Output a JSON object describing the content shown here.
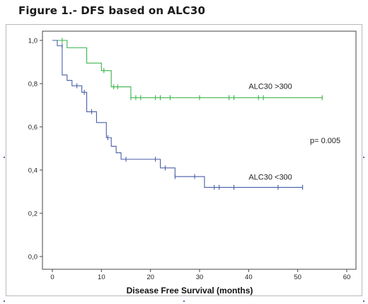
{
  "figure_title": "Figure 1.- DFS based on ALC30",
  "chart_data": {
    "type": "line",
    "step": true,
    "title": "",
    "xlabel": "Disease Free Survival (months)",
    "ylabel": "",
    "xlim": [
      0,
      60
    ],
    "ylim": [
      0,
      1
    ],
    "x_ticks": [
      0,
      10,
      20,
      30,
      40,
      50,
      60
    ],
    "x_tick_labels": [
      "0",
      "10",
      "20",
      "30",
      "40",
      "50",
      "60"
    ],
    "y_ticks": [
      0,
      0.2,
      0.4,
      0.6,
      0.8,
      1.0
    ],
    "y_tick_labels": [
      "0,0",
      "0,2",
      "0,4",
      "0,6",
      "0,8",
      "1,0"
    ],
    "grid": false,
    "series": [
      {
        "name": "ALC30 >300",
        "color": "#3cb44b",
        "steps": [
          [
            0,
            1.0
          ],
          [
            3,
            0.966
          ],
          [
            7,
            0.895
          ],
          [
            10,
            0.86
          ],
          [
            12,
            0.785
          ],
          [
            16,
            0.735
          ],
          [
            55,
            0.735
          ]
        ],
        "censored": [
          [
            2,
            1.0
          ],
          [
            10.5,
            0.86
          ],
          [
            12.5,
            0.785
          ],
          [
            13.3,
            0.785
          ],
          [
            16,
            0.735
          ],
          [
            17,
            0.735
          ],
          [
            18,
            0.735
          ],
          [
            21,
            0.735
          ],
          [
            22,
            0.735
          ],
          [
            24,
            0.735
          ],
          [
            30,
            0.735
          ],
          [
            36,
            0.735
          ],
          [
            37,
            0.735
          ],
          [
            42,
            0.735
          ],
          [
            43,
            0.735
          ],
          [
            55,
            0.735
          ]
        ]
      },
      {
        "name": "ALC30 <300",
        "color": "#4a5fa8",
        "steps": [
          [
            0,
            1.0
          ],
          [
            1,
            0.975
          ],
          [
            2,
            0.84
          ],
          [
            3,
            0.815
          ],
          [
            4,
            0.79
          ],
          [
            6,
            0.76
          ],
          [
            7,
            0.67
          ],
          [
            9,
            0.62
          ],
          [
            11,
            0.55
          ],
          [
            12,
            0.51
          ],
          [
            13,
            0.48
          ],
          [
            14,
            0.45
          ],
          [
            22,
            0.41
          ],
          [
            25,
            0.37
          ],
          [
            31,
            0.32
          ],
          [
            51,
            0.32
          ]
        ],
        "censored": [
          [
            2,
            0.975
          ],
          [
            5,
            0.79
          ],
          [
            6.5,
            0.76
          ],
          [
            8,
            0.67
          ],
          [
            11.3,
            0.55
          ],
          [
            15,
            0.45
          ],
          [
            21,
            0.45
          ],
          [
            23,
            0.41
          ],
          [
            25,
            0.37
          ],
          [
            29,
            0.37
          ],
          [
            33,
            0.32
          ],
          [
            34,
            0.32
          ],
          [
            37,
            0.32
          ],
          [
            46,
            0.32
          ],
          [
            51,
            0.32
          ]
        ]
      }
    ],
    "annotations": [
      {
        "text": "ALC30 >300",
        "x": 40,
        "y": 0.775
      },
      {
        "text": "p= 0.005",
        "x": 52.5,
        "y": 0.525
      },
      {
        "text": "ALC30 <300",
        "x": 40,
        "y": 0.355
      }
    ]
  }
}
